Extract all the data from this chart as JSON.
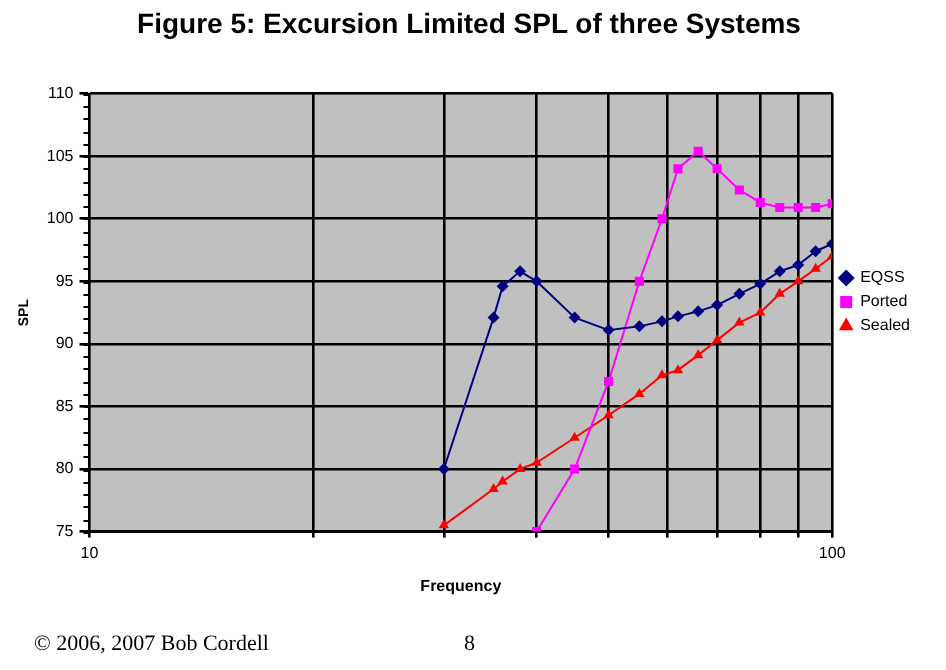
{
  "chart_data": {
    "type": "line",
    "title": "Figure 5: Excursion Limited SPL of three Systems",
    "xlabel": "Frequency",
    "ylabel": "SPL",
    "log": "x",
    "xlim": [
      10,
      100
    ],
    "xticks": [
      10,
      {
        "value": 20,
        "label": null
      },
      {
        "value": 30,
        "label": null
      },
      {
        "value": 40,
        "label": null
      },
      {
        "value": 50,
        "label": null
      },
      {
        "value": 60,
        "label": null
      },
      {
        "value": 70,
        "label": null
      },
      {
        "value": 80,
        "label": null
      },
      {
        "value": 90,
        "label": null
      },
      100
    ],
    "ylim": [
      75,
      110
    ],
    "yticks": [
      75,
      80,
      85,
      90,
      95,
      100,
      105,
      110
    ],
    "grid": true,
    "legend": "right",
    "line_style": "solid",
    "series": [
      {
        "name": "EQSS",
        "color": "#000080",
        "marker": "diamond",
        "x": [
          30,
          35,
          36,
          38,
          40,
          45,
          50,
          55,
          59,
          62,
          66,
          70,
          75,
          80,
          85,
          90,
          95,
          100
        ],
        "values": [
          80,
          92.1,
          94.6,
          95.8,
          95,
          92.1,
          91.1,
          91.4,
          91.8,
          92.2,
          92.6,
          93.1,
          94,
          94.8,
          95.8,
          96.3,
          97.4,
          98
        ]
      },
      {
        "name": "Ported",
        "color": "#ff00ff",
        "marker": "square",
        "x": [
          40,
          45,
          50,
          55,
          59,
          62,
          66,
          70,
          75,
          80,
          85,
          90,
          95,
          100
        ],
        "values": [
          75,
          80,
          87,
          95,
          100,
          104,
          105.4,
          104,
          102.3,
          101.3,
          100.9,
          100.9,
          100.9,
          101.2
        ]
      },
      {
        "name": "Sealed",
        "color": "#ff0000",
        "marker": "triangle",
        "x": [
          30,
          35,
          36,
          38,
          40,
          45,
          50,
          55,
          59,
          62,
          66,
          70,
          75,
          80,
          85,
          90,
          95,
          100
        ],
        "values": [
          75.5,
          78.4,
          79,
          80,
          80.5,
          82.5,
          84.3,
          86,
          87.5,
          87.9,
          89.1,
          90.3,
          91.7,
          92.5,
          94,
          95,
          96,
          97
        ]
      }
    ],
    "annotations": [
      "© 2006, 2007 Bob Cordell",
      "8"
    ]
  }
}
